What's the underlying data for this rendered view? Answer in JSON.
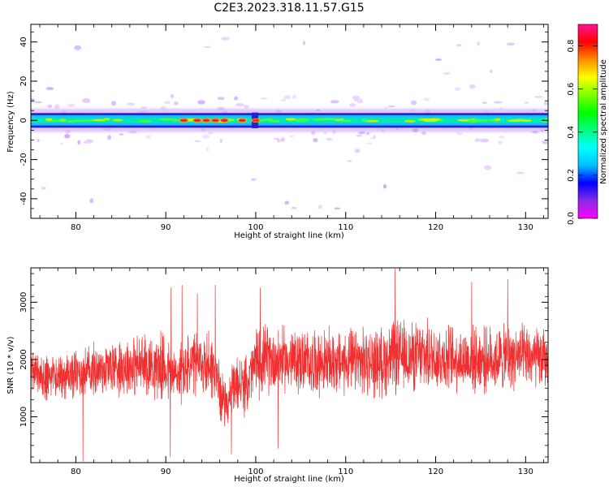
{
  "figure": {
    "title": "C2E3.2023.318.11.57.G15"
  },
  "chart_data": [
    {
      "type": "heatmap",
      "xlabel": "Height of straight line (km)",
      "ylabel": "Frequency (Hz)",
      "xlim": [
        75,
        132.5
      ],
      "ylim": [
        -50,
        49
      ],
      "xticks": [
        80,
        90,
        100,
        110,
        120,
        130
      ],
      "yticks": [
        -40,
        -20,
        0,
        20,
        40
      ],
      "colorbar": {
        "label": "Normalized spectral amplitude",
        "range": [
          0.0,
          0.9
        ],
        "ticks": [
          0.0,
          0.2,
          0.4,
          0.6,
          0.8
        ],
        "colormap": [
          "#ff00ff",
          "#8a2be2",
          "#0000ff",
          "#00bfff",
          "#00ffff",
          "#00ff7f",
          "#00ff00",
          "#7fff00",
          "#ffff00",
          "#ff8c00",
          "#ff0000",
          "#ff1493"
        ]
      },
      "band": {
        "center_hz": 0,
        "halfwidth_hz": 2.5,
        "notch_km": 100
      },
      "hot_spots_km": [
        92,
        93.5,
        94.5,
        95.5,
        96.5,
        98.5,
        100
      ]
    },
    {
      "type": "line",
      "xlabel": "Height of straight line (km)",
      "ylabel": "SNR (10 * v/v)",
      "xlim": [
        75,
        132.5
      ],
      "ylim": [
        200,
        3600
      ],
      "xticks": [
        80,
        90,
        100,
        110,
        120,
        130
      ],
      "yticks": [
        1000,
        2000,
        3000
      ],
      "color": "#f03030",
      "envelope": {
        "x": [
          75,
          77,
          80,
          85,
          89,
          90,
          91,
          92,
          93,
          94,
          95,
          95.6,
          96.2,
          96.8,
          97.3,
          98,
          98.8,
          99.5,
          100,
          101,
          103,
          106,
          110,
          114,
          115.5,
          117,
          120,
          123,
          126,
          129,
          132.5
        ],
        "mean": [
          1700,
          1700,
          1750,
          1900,
          1900,
          1850,
          1700,
          1800,
          1900,
          1900,
          1950,
          1700,
          1350,
          1250,
          1400,
          1600,
          1500,
          1750,
          1950,
          2000,
          2000,
          1950,
          1950,
          1950,
          2050,
          2050,
          2050,
          2000,
          2000,
          2050,
          2000
        ],
        "amp": [
          450,
          450,
          500,
          600,
          650,
          700,
          600,
          650,
          700,
          650,
          700,
          650,
          500,
          450,
          500,
          600,
          550,
          650,
          700,
          700,
          650,
          650,
          650,
          700,
          750,
          700,
          700,
          650,
          650,
          650,
          600
        ]
      },
      "peaks": [
        {
          "x": 90.6,
          "y": 3250
        },
        {
          "x": 91.8,
          "y": 3300
        },
        {
          "x": 93.5,
          "y": 3150
        },
        {
          "x": 95.5,
          "y": 3300
        },
        {
          "x": 100.5,
          "y": 3250
        },
        {
          "x": 115.5,
          "y": 3580
        },
        {
          "x": 124,
          "y": 3350
        },
        {
          "x": 128,
          "y": 3400
        }
      ],
      "troughs": [
        {
          "x": 80.8,
          "y": 220
        },
        {
          "x": 90.5,
          "y": 300
        },
        {
          "x": 97.3,
          "y": 350
        },
        {
          "x": 102.5,
          "y": 450
        }
      ]
    }
  ]
}
